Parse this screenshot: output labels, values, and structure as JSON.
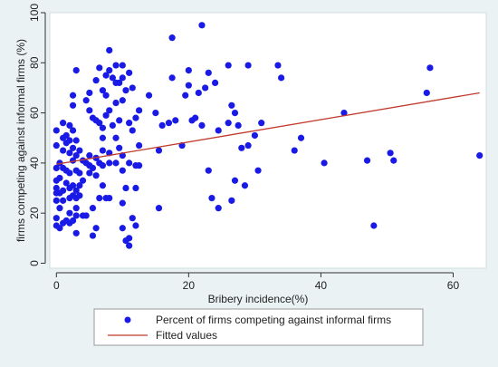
{
  "chart_data": {
    "type": "scatter",
    "xlabel": "Bribery incidence(%)",
    "ylabel": "firms competing against informal firms (%)",
    "xlim": [
      -1,
      65
    ],
    "ylim": [
      -2,
      100
    ],
    "xticks": [
      0,
      20,
      40,
      60
    ],
    "yticks": [
      0,
      20,
      40,
      60,
      80,
      100
    ],
    "grid": false,
    "legend_position": "bottom",
    "colors": {
      "points": "#1a1ae6",
      "fit": "#c0392b",
      "background": "#eaf2f3",
      "plot_bg": "#ffffff"
    },
    "series": [
      {
        "name": "Percent of firms competing against informal firms",
        "kind": "scatter",
        "points": [
          [
            0,
            53
          ],
          [
            0,
            47
          ],
          [
            0,
            38
          ],
          [
            0,
            33
          ],
          [
            0,
            30
          ],
          [
            0,
            28
          ],
          [
            0,
            25
          ],
          [
            0,
            18
          ],
          [
            0,
            15
          ],
          [
            0.5,
            40
          ],
          [
            0.5,
            34
          ],
          [
            0.5,
            28
          ],
          [
            0.5,
            22
          ],
          [
            0.5,
            14
          ],
          [
            1,
            56
          ],
          [
            1,
            50
          ],
          [
            1,
            45
          ],
          [
            1,
            38
          ],
          [
            1,
            29
          ],
          [
            1,
            25
          ],
          [
            1,
            16
          ],
          [
            1.5,
            51
          ],
          [
            1.5,
            48
          ],
          [
            1.5,
            37
          ],
          [
            1.5,
            32
          ],
          [
            1.5,
            17
          ],
          [
            2,
            55
          ],
          [
            2,
            49
          ],
          [
            2,
            44
          ],
          [
            2,
            36
          ],
          [
            2,
            30
          ],
          [
            2,
            26
          ],
          [
            2,
            20
          ],
          [
            2,
            16
          ],
          [
            2.5,
            67
          ],
          [
            2.5,
            63
          ],
          [
            2.5,
            53
          ],
          [
            2.5,
            46
          ],
          [
            2.5,
            41
          ],
          [
            2.5,
            31
          ],
          [
            2.5,
            27
          ],
          [
            2.5,
            17
          ],
          [
            3,
            77
          ],
          [
            3,
            49
          ],
          [
            3,
            43
          ],
          [
            3,
            37
          ],
          [
            3,
            29
          ],
          [
            3,
            26
          ],
          [
            3,
            22
          ],
          [
            3,
            19
          ],
          [
            3,
            12
          ],
          [
            3.5,
            45
          ],
          [
            3.5,
            36
          ],
          [
            3.5,
            31
          ],
          [
            3.5,
            27
          ],
          [
            4,
            41
          ],
          [
            4,
            33
          ],
          [
            4,
            19
          ],
          [
            4.5,
            65
          ],
          [
            4.5,
            40
          ],
          [
            4.5,
            19
          ],
          [
            5,
            68
          ],
          [
            5,
            61
          ],
          [
            5,
            43
          ],
          [
            5,
            39
          ],
          [
            5,
            36
          ],
          [
            5.5,
            58
          ],
          [
            5.5,
            38
          ],
          [
            5.5,
            22
          ],
          [
            5.5,
            11
          ],
          [
            6,
            73
          ],
          [
            6,
            57
          ],
          [
            6,
            42
          ],
          [
            6,
            35
          ],
          [
            6,
            14
          ],
          [
            6.5,
            78
          ],
          [
            6.5,
            56
          ],
          [
            6.5,
            40
          ],
          [
            6.5,
            26
          ],
          [
            7,
            69
          ],
          [
            7,
            54
          ],
          [
            7,
            50
          ],
          [
            7,
            45
          ],
          [
            7,
            39
          ],
          [
            7,
            31
          ],
          [
            7.5,
            75
          ],
          [
            7.5,
            67
          ],
          [
            7.5,
            59
          ],
          [
            7.5,
            26
          ],
          [
            8,
            85
          ],
          [
            8,
            77
          ],
          [
            8,
            61
          ],
          [
            8,
            44
          ],
          [
            8,
            40
          ],
          [
            8,
            26
          ],
          [
            8.5,
            74
          ],
          [
            8.5,
            55
          ],
          [
            9,
            79
          ],
          [
            9,
            72
          ],
          [
            9,
            64
          ],
          [
            9,
            50
          ],
          [
            9,
            40
          ],
          [
            9.5,
            72
          ],
          [
            9.5,
            57
          ],
          [
            9.5,
            46
          ],
          [
            10,
            79
          ],
          [
            10,
            74
          ],
          [
            10,
            65
          ],
          [
            10,
            43
          ],
          [
            10,
            37
          ],
          [
            10,
            24
          ],
          [
            10,
            14
          ],
          [
            10.5,
            69
          ],
          [
            10.5,
            30
          ],
          [
            10.5,
            9
          ],
          [
            11,
            76
          ],
          [
            11,
            56
          ],
          [
            11,
            40
          ],
          [
            11,
            10
          ],
          [
            11,
            7
          ],
          [
            11.5,
            70
          ],
          [
            11.5,
            53
          ],
          [
            11.5,
            18
          ],
          [
            12,
            58
          ],
          [
            12,
            39
          ],
          [
            12,
            30
          ],
          [
            12,
            15
          ],
          [
            12.5,
            61
          ],
          [
            12.5,
            47
          ],
          [
            12.5,
            39
          ],
          [
            14,
            67
          ],
          [
            15,
            60
          ],
          [
            15.5,
            22
          ],
          [
            15.5,
            45
          ],
          [
            16,
            55
          ],
          [
            17,
            56
          ],
          [
            17.5,
            74
          ],
          [
            17.5,
            90
          ],
          [
            18,
            57
          ],
          [
            19,
            47
          ],
          [
            19.5,
            67
          ],
          [
            20,
            77
          ],
          [
            20,
            71
          ],
          [
            20.5,
            57
          ],
          [
            21,
            58
          ],
          [
            21.5,
            68
          ],
          [
            22,
            95
          ],
          [
            22,
            55
          ],
          [
            22.5,
            70
          ],
          [
            23,
            37
          ],
          [
            23,
            76
          ],
          [
            23.5,
            26
          ],
          [
            24,
            72
          ],
          [
            24.5,
            22
          ],
          [
            24.5,
            53
          ],
          [
            26,
            79
          ],
          [
            26,
            56
          ],
          [
            26.5,
            25
          ],
          [
            26.5,
            63
          ],
          [
            27,
            33
          ],
          [
            27,
            60
          ],
          [
            27.5,
            55
          ],
          [
            28,
            46
          ],
          [
            28.5,
            31
          ],
          [
            29,
            79
          ],
          [
            29,
            47
          ],
          [
            30,
            51
          ],
          [
            30.5,
            37
          ],
          [
            31,
            56
          ],
          [
            33.5,
            79
          ],
          [
            34,
            74
          ],
          [
            36,
            45
          ],
          [
            37,
            50
          ],
          [
            40.5,
            40
          ],
          [
            43.5,
            60
          ],
          [
            47,
            41
          ],
          [
            48,
            15
          ],
          [
            50.5,
            44
          ],
          [
            51,
            41
          ],
          [
            56,
            68
          ],
          [
            56.5,
            78
          ],
          [
            64,
            43
          ]
        ]
      },
      {
        "name": "Fitted values",
        "kind": "line",
        "points": [
          [
            0,
            39.5
          ],
          [
            64,
            68
          ]
        ]
      }
    ]
  }
}
